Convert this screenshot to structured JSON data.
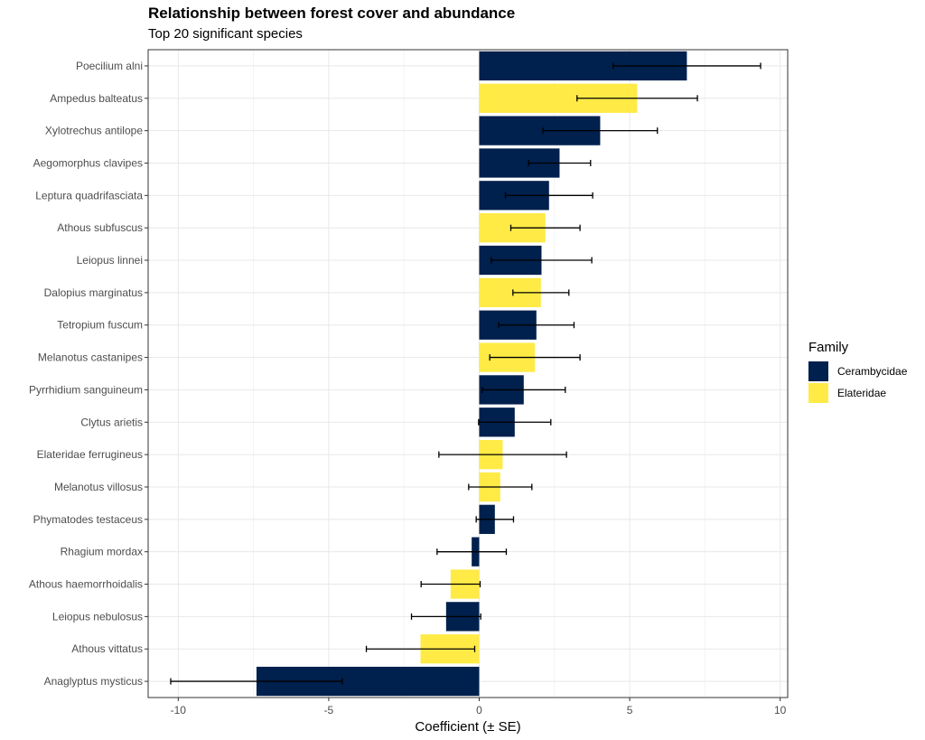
{
  "title": "Relationship between forest cover and abundance",
  "subtitle": "Top 20 significant species",
  "chart_data": {
    "type": "bar",
    "orientation": "horizontal",
    "xlabel": "Coefficient (± SE)",
    "ylabel": "",
    "xlim": [
      -11.0,
      10.25
    ],
    "xticks": [
      -10,
      -5,
      0,
      5,
      10
    ],
    "grid": true,
    "legend": {
      "title": "Family",
      "position": "right",
      "entries": [
        {
          "name": "Cerambycidae",
          "color": "#00204D"
        },
        {
          "name": "Elateridae",
          "color": "#FFEA46"
        }
      ]
    },
    "data": [
      {
        "species": "Poecilium alni",
        "family": "Cerambycidae",
        "value": 6.9,
        "se": 2.45
      },
      {
        "species": "Ampedus balteatus",
        "family": "Elateridae",
        "value": 5.25,
        "se": 2.0
      },
      {
        "species": "Xylotrechus antilope",
        "family": "Cerambycidae",
        "value": 4.02,
        "se": 1.9
      },
      {
        "species": "Aegomorphus clavipes",
        "family": "Cerambycidae",
        "value": 2.67,
        "se": 1.03
      },
      {
        "species": "Leptura quadrifasciata",
        "family": "Cerambycidae",
        "value": 2.32,
        "se": 1.45
      },
      {
        "species": "Athous subfuscus",
        "family": "Elateridae",
        "value": 2.2,
        "se": 1.15
      },
      {
        "species": "Leiopus linnei",
        "family": "Cerambycidae",
        "value": 2.07,
        "se": 1.67
      },
      {
        "species": "Dalopius marginatus",
        "family": "Elateridae",
        "value": 2.05,
        "se": 0.93
      },
      {
        "species": "Tetropium fuscum",
        "family": "Cerambycidae",
        "value": 1.9,
        "se": 1.25
      },
      {
        "species": "Melanotus castanipes",
        "family": "Elateridae",
        "value": 1.85,
        "se": 1.5
      },
      {
        "species": "Pyrrhidium sanguineum",
        "family": "Cerambycidae",
        "value": 1.48,
        "se": 1.38
      },
      {
        "species": "Clytus arietis",
        "family": "Cerambycidae",
        "value": 1.18,
        "se": 1.2
      },
      {
        "species": "Elateridae ferrugineus",
        "family": "Elateridae",
        "value": 0.78,
        "se": 2.12
      },
      {
        "species": "Melanotus villosus",
        "family": "Elateridae",
        "value": 0.7,
        "se": 1.05
      },
      {
        "species": "Phymatodes testaceus",
        "family": "Cerambycidae",
        "value": 0.52,
        "se": 0.62
      },
      {
        "species": "Rhagium mordax",
        "family": "Cerambycidae",
        "value": -0.25,
        "se": 1.15
      },
      {
        "species": "Athous haemorrhoidalis",
        "family": "Elateridae",
        "value": -0.95,
        "se": 0.98
      },
      {
        "species": "Leiopus nebulosus",
        "family": "Cerambycidae",
        "value": -1.1,
        "se": 1.15
      },
      {
        "species": "Athous vittatus",
        "family": "Elateridae",
        "value": -1.95,
        "se": 1.8
      },
      {
        "species": "Anaglyptus mysticus",
        "family": "Cerambycidae",
        "value": -7.4,
        "se": 2.85
      }
    ]
  }
}
